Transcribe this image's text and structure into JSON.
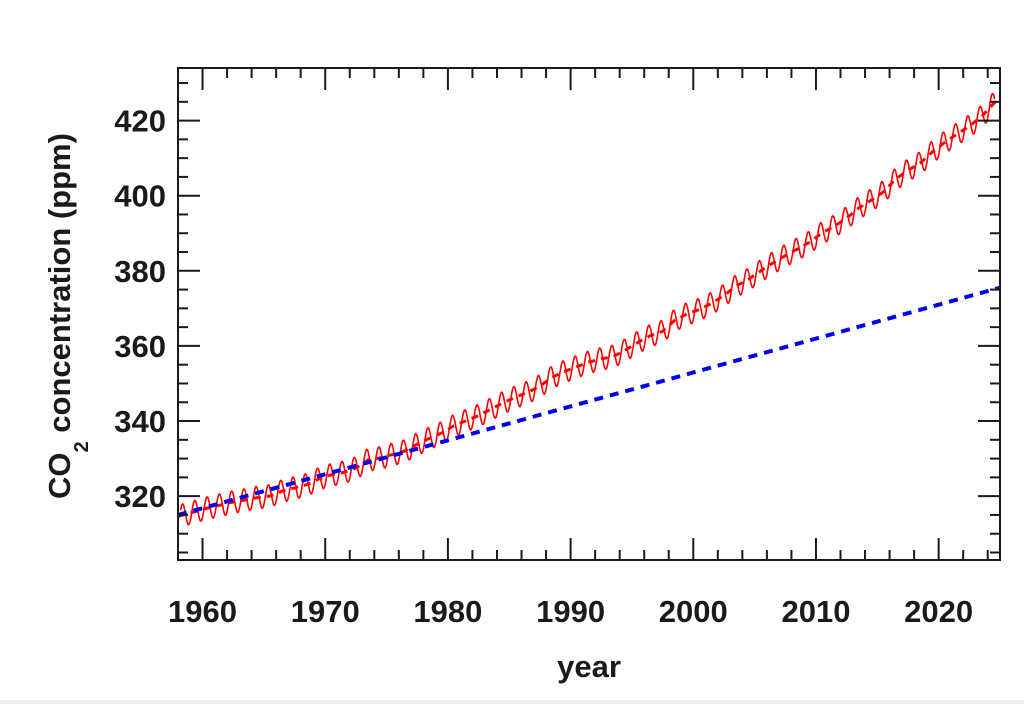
{
  "chart_data": {
    "type": "line",
    "title": "",
    "xlabel": "year",
    "ylabel_main": "CO",
    "ylabel_sub": "2",
    "ylabel_rest": " concentration (ppm)",
    "xlim": [
      1958,
      2025
    ],
    "ylim": [
      303,
      434
    ],
    "x_ticks": [
      1960,
      1970,
      1980,
      1990,
      2000,
      2010,
      2020
    ],
    "x_tick_labels": [
      "1960",
      "1970",
      "1980",
      "1990",
      "2000",
      "2010",
      "2020"
    ],
    "x_minor_step": 2,
    "y_ticks": [
      320,
      340,
      360,
      380,
      400,
      420
    ],
    "y_tick_labels": [
      "320",
      "340",
      "360",
      "380",
      "400",
      "420"
    ],
    "y_minor_step": 5,
    "grid": false,
    "legend": "none",
    "series": [
      {
        "style": "solid",
        "color": "#ff0000",
        "description_type": "monthly with seasonal cycle",
        "seasonal_amplitude": 3,
        "years": [
          1959,
          1960,
          1961,
          1962,
          1963,
          1964,
          1965,
          1966,
          1967,
          1968,
          1969,
          1970,
          1971,
          1972,
          1973,
          1974,
          1975,
          1976,
          1977,
          1978,
          1979,
          1980,
          1981,
          1982,
          1983,
          1984,
          1985,
          1986,
          1987,
          1988,
          1989,
          1990,
          1991,
          1992,
          1993,
          1994,
          1995,
          1996,
          1997,
          1998,
          1999,
          2000,
          2001,
          2002,
          2003,
          2004,
          2005,
          2006,
          2007,
          2008,
          2009,
          2010,
          2011,
          2012,
          2013,
          2014,
          2015,
          2016,
          2017,
          2018,
          2019,
          2020,
          2021,
          2022,
          2023,
          2024
        ],
        "annual_mean": [
          315.98,
          316.91,
          317.64,
          318.45,
          318.99,
          319.62,
          320.04,
          321.37,
          322.18,
          323.05,
          324.62,
          325.68,
          326.32,
          327.46,
          329.68,
          330.19,
          331.12,
          332.03,
          333.84,
          335.41,
          336.84,
          338.76,
          340.12,
          341.48,
          343.15,
          344.87,
          346.35,
          347.61,
          349.31,
          351.69,
          353.2,
          354.45,
          355.7,
          356.54,
          357.21,
          358.96,
          360.97,
          362.74,
          363.88,
          366.84,
          368.54,
          369.71,
          371.32,
          373.45,
          375.98,
          377.7,
          379.98,
          382.09,
          384.02,
          385.83,
          387.64,
          390.1,
          391.85,
          394.06,
          396.74,
          398.81,
          401.01,
          404.41,
          406.76,
          408.72,
          411.65,
          414.21,
          416.41,
          418.53,
          421.08,
          424.6
        ]
      },
      {
        "style": "dashed",
        "color": "#ff0000",
        "x": [
          1958,
          2025
        ],
        "trend_of": "annual_mean"
      },
      {
        "style": "dashed",
        "color": "#0000ee",
        "x": [
          1958,
          2025
        ],
        "y": [
          315,
          375.5
        ]
      }
    ]
  }
}
